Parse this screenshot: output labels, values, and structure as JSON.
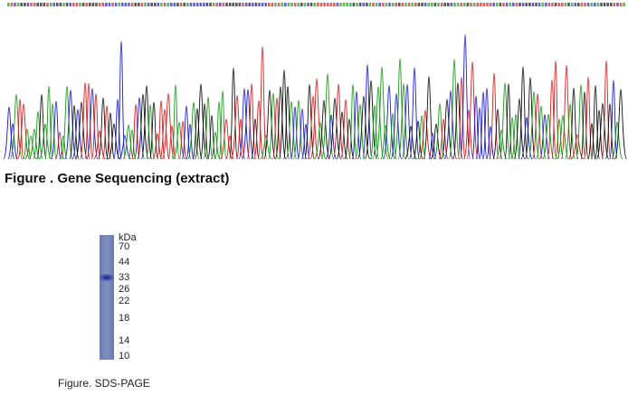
{
  "figures": [
    {
      "caption": "Figure . Gene Sequencing (extract)"
    },
    {
      "caption": "Figure. SDS-PAGE",
      "marker_unit": "kDa",
      "markers": [
        70,
        44,
        33,
        26,
        22,
        18,
        14,
        10
      ]
    }
  ]
}
